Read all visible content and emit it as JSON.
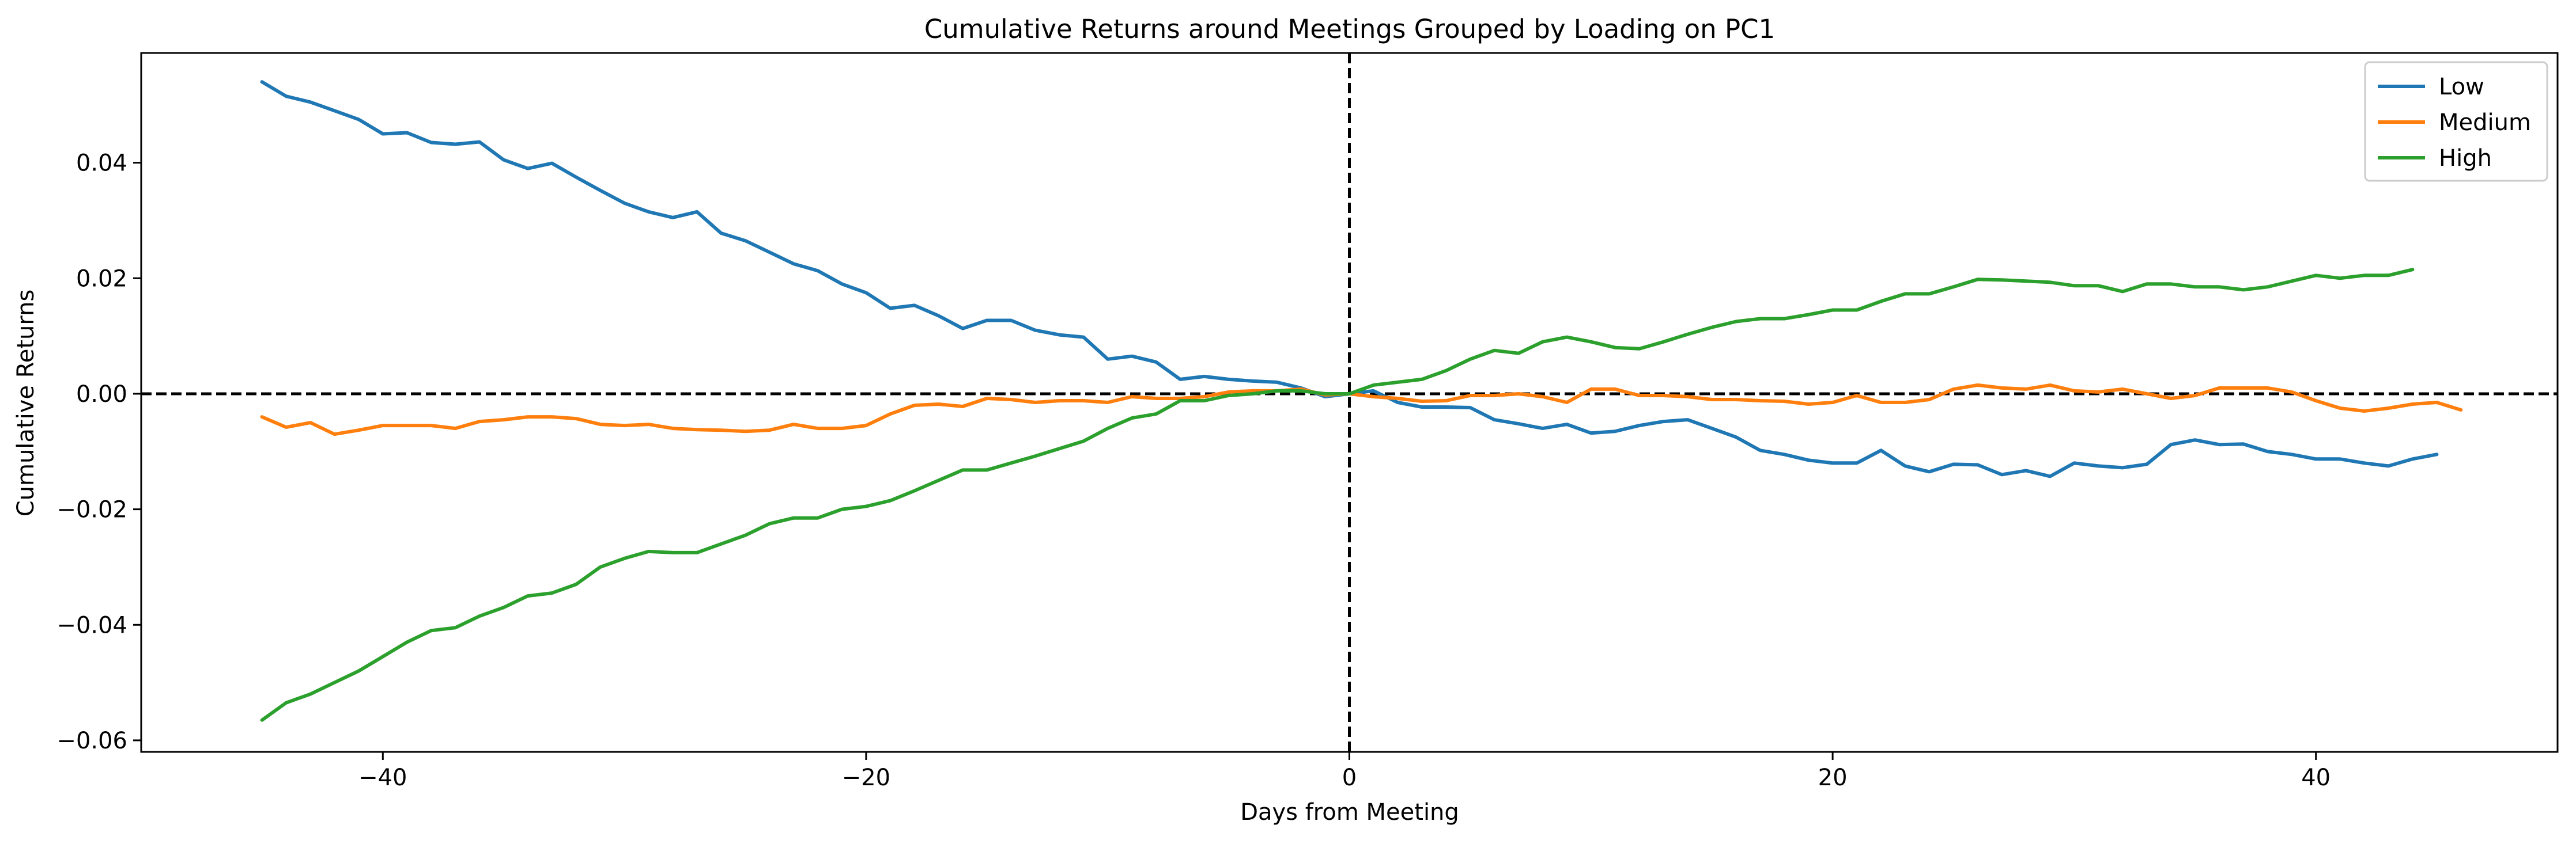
{
  "chart_data": {
    "type": "line",
    "title": "Cumulative Returns around Meetings Grouped by Loading on PC1",
    "xlabel": "Days from Meeting",
    "ylabel": "Cumulative Returns",
    "xlim": [
      -50,
      50
    ],
    "ylim": [
      -0.062,
      0.059
    ],
    "xticks": [
      -40,
      -20,
      0,
      20,
      40
    ],
    "xtick_labels": [
      "−40",
      "−20",
      "0",
      "20",
      "40"
    ],
    "yticks": [
      -0.06,
      -0.04,
      -0.02,
      0.0,
      0.02,
      0.04
    ],
    "ytick_labels": [
      "−0.06",
      "−0.04",
      "−0.02",
      "0.00",
      "0.02",
      "0.04"
    ],
    "grid": false,
    "legend_position": "top-right",
    "reference_lines": [
      {
        "orientation": "vertical",
        "value": 0,
        "style": "dashed",
        "color": "#000000"
      },
      {
        "orientation": "horizontal",
        "value": 0,
        "style": "dashed",
        "color": "#000000"
      }
    ],
    "x_start": -45,
    "x_end": 45,
    "series": [
      {
        "name": "Low",
        "color": "#1f77b4",
        "values": [
          0.054,
          0.0515,
          0.0505,
          0.049,
          0.0475,
          0.045,
          0.0452,
          0.0435,
          0.0432,
          0.0436,
          0.0405,
          0.039,
          0.0399,
          0.0375,
          0.0352,
          0.033,
          0.0315,
          0.0305,
          0.0315,
          0.0278,
          0.0265,
          0.0245,
          0.0225,
          0.0213,
          0.019,
          0.0175,
          0.0148,
          0.0153,
          0.0135,
          0.0113,
          0.0127,
          0.0127,
          0.011,
          0.0102,
          0.0098,
          0.006,
          0.0065,
          0.0055,
          0.0025,
          0.003,
          0.0025,
          0.0022,
          0.002,
          0.001,
          -0.0005,
          0.0,
          0.0005,
          -0.0015,
          -0.0023,
          -0.0023,
          -0.0024,
          -0.0045,
          -0.0052,
          -0.006,
          -0.0053,
          -0.0068,
          -0.0065,
          -0.0055,
          -0.0048,
          -0.0045,
          -0.006,
          -0.0075,
          -0.0098,
          -0.0105,
          -0.0115,
          -0.012,
          -0.012,
          -0.0098,
          -0.0125,
          -0.0135,
          -0.0122,
          -0.0123,
          -0.014,
          -0.0133,
          -0.0143,
          -0.012,
          -0.0125,
          -0.0128,
          -0.0122,
          -0.0088,
          -0.008,
          -0.0088,
          -0.0087,
          -0.01,
          -0.0105,
          -0.0113,
          -0.0113,
          -0.012,
          -0.0125,
          -0.0113,
          -0.0105
        ]
      },
      {
        "name": "Medium",
        "color": "#ff7f0e",
        "values": [
          -0.004,
          -0.0058,
          -0.005,
          -0.007,
          -0.0063,
          -0.0055,
          -0.0055,
          -0.0055,
          -0.006,
          -0.0048,
          -0.0045,
          -0.004,
          -0.004,
          -0.0043,
          -0.0053,
          -0.0055,
          -0.0053,
          -0.006,
          -0.0062,
          -0.0063,
          -0.0065,
          -0.0063,
          -0.0053,
          -0.006,
          -0.006,
          -0.0055,
          -0.0035,
          -0.002,
          -0.0018,
          -0.0022,
          -0.0008,
          -0.001,
          -0.0015,
          -0.0012,
          -0.0012,
          -0.0015,
          -0.0005,
          -0.0008,
          -0.0008,
          -0.0005,
          0.0003,
          0.0005,
          0.0005,
          0.0008,
          -0.0002,
          0.0,
          -0.0005,
          -0.0008,
          -0.0013,
          -0.0012,
          -0.0003,
          -0.0003,
          0.0,
          -0.0005,
          -0.0015,
          0.0008,
          0.0008,
          -0.0003,
          -0.0003,
          -0.0005,
          -0.001,
          -0.001,
          -0.0012,
          -0.0013,
          -0.0018,
          -0.0015,
          -0.0003,
          -0.0015,
          -0.0015,
          -0.001,
          0.0008,
          0.0015,
          0.001,
          0.0008,
          0.0015,
          0.0005,
          0.0003,
          0.0008,
          0.0,
          -0.0008,
          -0.0003,
          0.001,
          0.001,
          0.001,
          0.0003,
          -0.0012,
          -0.0025,
          -0.003,
          -0.0025,
          -0.0018,
          -0.0015,
          -0.0028
        ]
      },
      {
        "name": "High",
        "color": "#2ca02c",
        "values": [
          -0.0565,
          -0.0535,
          -0.052,
          -0.05,
          -0.048,
          -0.0455,
          -0.043,
          -0.041,
          -0.0405,
          -0.0385,
          -0.037,
          -0.035,
          -0.0345,
          -0.033,
          -0.03,
          -0.0285,
          -0.0273,
          -0.0275,
          -0.0275,
          -0.026,
          -0.0245,
          -0.0225,
          -0.0215,
          -0.0215,
          -0.02,
          -0.0195,
          -0.0185,
          -0.0168,
          -0.015,
          -0.0132,
          -0.0132,
          -0.012,
          -0.0108,
          -0.0095,
          -0.0082,
          -0.006,
          -0.0042,
          -0.0035,
          -0.0012,
          -0.0012,
          -0.0003,
          0.0,
          0.0005,
          0.0005,
          0.0,
          0.0,
          0.0015,
          0.002,
          0.0025,
          0.004,
          0.006,
          0.0075,
          0.007,
          0.009,
          0.0098,
          0.009,
          0.008,
          0.0078,
          0.009,
          0.0103,
          0.0115,
          0.0125,
          0.013,
          0.013,
          0.0137,
          0.0145,
          0.0145,
          0.016,
          0.0173,
          0.0173,
          0.0185,
          0.0198,
          0.0197,
          0.0195,
          0.0193,
          0.0187,
          0.0187,
          0.0177,
          0.019,
          0.019,
          0.0185,
          0.0185,
          0.018,
          0.0185,
          0.0195,
          0.0205,
          0.02,
          0.0205,
          0.0205,
          0.0215
        ]
      }
    ]
  }
}
